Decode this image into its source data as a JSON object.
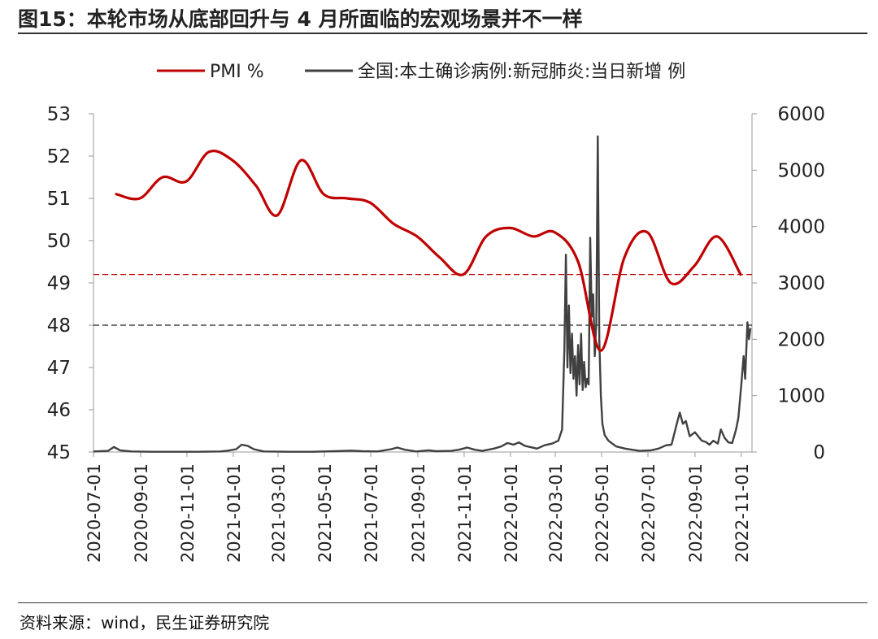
{
  "title": "图15：本轮市场从底部回升与 4 月所面临的宏观场景并不一样",
  "source": "资料来源：wind，民生证券研究院",
  "chart_data": {
    "type": "line",
    "dual_axis": true,
    "legend_position": "top",
    "grid": false,
    "x_ticks": [
      "2020-07-01",
      "2020-09-01",
      "2020-11-01",
      "2021-01-01",
      "2021-03-01",
      "2021-05-01",
      "2021-07-01",
      "2021-09-01",
      "2021-11-01",
      "2022-01-01",
      "2022-03-01",
      "2022-05-01",
      "2022-07-01",
      "2022-09-01",
      "2022-11-01"
    ],
    "xlim": [
      "2020-07-01",
      "2022-11-15"
    ],
    "y_left": {
      "ylim": [
        45,
        53
      ],
      "ticks": [
        45,
        46,
        47,
        48,
        49,
        50,
        51,
        52,
        53
      ]
    },
    "y_right": {
      "ylim": [
        0,
        6000
      ],
      "ticks": [
        0,
        1000,
        2000,
        3000,
        4000,
        5000,
        6000
      ]
    },
    "reference_lines": [
      {
        "axis": "left",
        "value": 49.2,
        "color": "#c00000",
        "style": "dashed"
      },
      {
        "axis": "left",
        "value": 48.0,
        "color": "#222222",
        "style": "dashed"
      }
    ],
    "series": [
      {
        "name": "PMI %",
        "axis": "left",
        "color": "#c00000",
        "points": [
          [
            "2020-07-31",
            51.1
          ],
          [
            "2020-08-31",
            51.0
          ],
          [
            "2020-09-30",
            51.5
          ],
          [
            "2020-10-31",
            51.4
          ],
          [
            "2020-11-30",
            52.1
          ],
          [
            "2020-12-31",
            51.9
          ],
          [
            "2021-01-31",
            51.3
          ],
          [
            "2021-02-28",
            50.6
          ],
          [
            "2021-03-31",
            51.9
          ],
          [
            "2021-04-30",
            51.1
          ],
          [
            "2021-05-31",
            51.0
          ],
          [
            "2021-06-30",
            50.9
          ],
          [
            "2021-07-31",
            50.4
          ],
          [
            "2021-08-31",
            50.1
          ],
          [
            "2021-09-30",
            49.6
          ],
          [
            "2021-10-31",
            49.2
          ],
          [
            "2021-11-30",
            50.1
          ],
          [
            "2021-12-31",
            50.3
          ],
          [
            "2022-01-31",
            50.1
          ],
          [
            "2022-02-28",
            50.2
          ],
          [
            "2022-03-31",
            49.5
          ],
          [
            "2022-04-30",
            47.4
          ],
          [
            "2022-05-31",
            49.6
          ],
          [
            "2022-06-30",
            50.2
          ],
          [
            "2022-07-31",
            49.0
          ],
          [
            "2022-08-31",
            49.4
          ],
          [
            "2022-09-30",
            50.1
          ],
          [
            "2022-10-31",
            49.2
          ]
        ]
      },
      {
        "name": "全国:本土确诊病例:新冠肺炎:当日新增  例",
        "axis": "right",
        "color": "#404040",
        "points": [
          [
            "2020-07-01",
            10
          ],
          [
            "2020-07-20",
            20
          ],
          [
            "2020-07-28",
            90
          ],
          [
            "2020-08-05",
            30
          ],
          [
            "2020-08-20",
            10
          ],
          [
            "2020-09-15",
            5
          ],
          [
            "2020-10-15",
            5
          ],
          [
            "2020-11-15",
            5
          ],
          [
            "2020-12-15",
            10
          ],
          [
            "2020-12-25",
            25
          ],
          [
            "2021-01-05",
            50
          ],
          [
            "2021-01-12",
            130
          ],
          [
            "2021-01-20",
            110
          ],
          [
            "2021-01-28",
            50
          ],
          [
            "2021-02-10",
            10
          ],
          [
            "2021-03-15",
            5
          ],
          [
            "2021-04-15",
            5
          ],
          [
            "2021-05-15",
            15
          ],
          [
            "2021-06-05",
            25
          ],
          [
            "2021-06-20",
            15
          ],
          [
            "2021-07-10",
            10
          ],
          [
            "2021-07-28",
            50
          ],
          [
            "2021-08-05",
            80
          ],
          [
            "2021-08-15",
            40
          ],
          [
            "2021-08-30",
            10
          ],
          [
            "2021-09-15",
            30
          ],
          [
            "2021-09-25",
            15
          ],
          [
            "2021-10-15",
            20
          ],
          [
            "2021-10-25",
            40
          ],
          [
            "2021-11-05",
            80
          ],
          [
            "2021-11-15",
            40
          ],
          [
            "2021-11-25",
            20
          ],
          [
            "2021-12-10",
            60
          ],
          [
            "2021-12-20",
            100
          ],
          [
            "2021-12-28",
            160
          ],
          [
            "2022-01-05",
            130
          ],
          [
            "2022-01-12",
            170
          ],
          [
            "2022-01-20",
            110
          ],
          [
            "2022-02-05",
            60
          ],
          [
            "2022-02-15",
            120
          ],
          [
            "2022-02-25",
            150
          ],
          [
            "2022-03-05",
            200
          ],
          [
            "2022-03-10",
            400
          ],
          [
            "2022-03-13",
            1800
          ],
          [
            "2022-03-15",
            3500
          ],
          [
            "2022-03-17",
            1500
          ],
          [
            "2022-03-19",
            2600
          ],
          [
            "2022-03-21",
            1400
          ],
          [
            "2022-03-23",
            2100
          ],
          [
            "2022-03-25",
            1300
          ],
          [
            "2022-03-27",
            1700
          ],
          [
            "2022-03-29",
            1000
          ],
          [
            "2022-03-31",
            1900
          ],
          [
            "2022-04-02",
            1200
          ],
          [
            "2022-04-04",
            2100
          ],
          [
            "2022-04-06",
            1100
          ],
          [
            "2022-04-08",
            1600
          ],
          [
            "2022-04-10",
            1150
          ],
          [
            "2022-04-12",
            1300
          ],
          [
            "2022-04-14",
            1200
          ],
          [
            "2022-04-16",
            3800
          ],
          [
            "2022-04-18",
            2400
          ],
          [
            "2022-04-20",
            2800
          ],
          [
            "2022-04-22",
            1700
          ],
          [
            "2022-04-24",
            2300
          ],
          [
            "2022-04-26",
            5600
          ],
          [
            "2022-04-28",
            2000
          ],
          [
            "2022-04-30",
            1000
          ],
          [
            "2022-05-02",
            500
          ],
          [
            "2022-05-05",
            300
          ],
          [
            "2022-05-10",
            200
          ],
          [
            "2022-05-20",
            100
          ],
          [
            "2022-06-01",
            60
          ],
          [
            "2022-06-10",
            40
          ],
          [
            "2022-06-20",
            20
          ],
          [
            "2022-07-05",
            30
          ],
          [
            "2022-07-15",
            60
          ],
          [
            "2022-07-25",
            120
          ],
          [
            "2022-08-01",
            130
          ],
          [
            "2022-08-08",
            500
          ],
          [
            "2022-08-12",
            700
          ],
          [
            "2022-08-16",
            500
          ],
          [
            "2022-08-20",
            550
          ],
          [
            "2022-08-25",
            280
          ],
          [
            "2022-09-01",
            350
          ],
          [
            "2022-09-10",
            200
          ],
          [
            "2022-09-15",
            180
          ],
          [
            "2022-09-20",
            130
          ],
          [
            "2022-09-25",
            200
          ],
          [
            "2022-10-01",
            150
          ],
          [
            "2022-10-05",
            400
          ],
          [
            "2022-10-10",
            250
          ],
          [
            "2022-10-15",
            170
          ],
          [
            "2022-10-20",
            160
          ],
          [
            "2022-10-25",
            400
          ],
          [
            "2022-10-28",
            600
          ],
          [
            "2022-11-01",
            1200
          ],
          [
            "2022-11-04",
            1700
          ],
          [
            "2022-11-06",
            1300
          ],
          [
            "2022-11-09",
            2300
          ],
          [
            "2022-11-11",
            2000
          ],
          [
            "2022-11-13",
            2200
          ]
        ]
      }
    ]
  }
}
